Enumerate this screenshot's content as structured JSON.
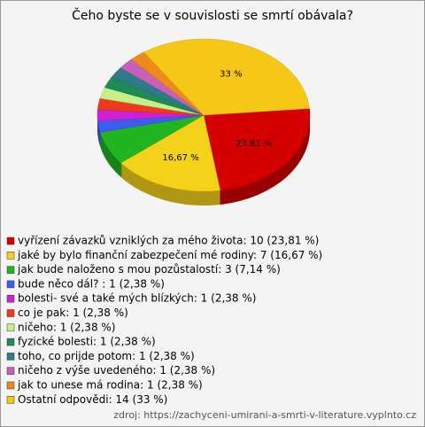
{
  "chart_data": {
    "type": "pie",
    "title": "Čeho byste se v souvislosti se smrtí obávala?",
    "categories": [
      "vyřízení závazků vzniklých za mého života: 10 (23,81 %)",
      "jaké by bylo finanční zabezpečení mé rodiny: 7 (16,67 %)",
      "jak bude naloženo s mou pozůstalostí: 3 (7,14 %)",
      "bude něco dál? : 1 (2,38 %)",
      "bolesti- své a také mých blízkých: 1 (2,38 %)",
      "co je pak: 1 (2,38 %)",
      "ničeho: 1 (2,38 %)",
      "fyzické bolesti: 1 (2,38 %)",
      "toho, co prijde potom: 1 (2,38 %)",
      "ničeho z výše uvedeného: 1 (2,38 %)",
      "jak to unese má rodina: 1 (2,38 %)",
      "Ostatní odpovědi: 14 (33 %)"
    ],
    "values": [
      23.81,
      16.67,
      7.14,
      2.38,
      2.38,
      2.38,
      2.38,
      2.38,
      2.38,
      2.38,
      2.38,
      33
    ],
    "value_labels": [
      "23,81 %",
      "16,67 %",
      null,
      null,
      null,
      null,
      null,
      null,
      null,
      null,
      null,
      "33 %"
    ],
    "colors": [
      "#d40000",
      "#f5d21a",
      "#22b522",
      "#3a5ef0",
      "#cc22d4",
      "#ee3a1a",
      "#c4f08a",
      "#1f8a55",
      "#2f7a8a",
      "#c860b8",
      "#ee8a1a",
      "#f5c818"
    ],
    "source": "zdroj: https://zachyceni-umirani-a-smrti-v-literature.vyplnto.cz"
  }
}
